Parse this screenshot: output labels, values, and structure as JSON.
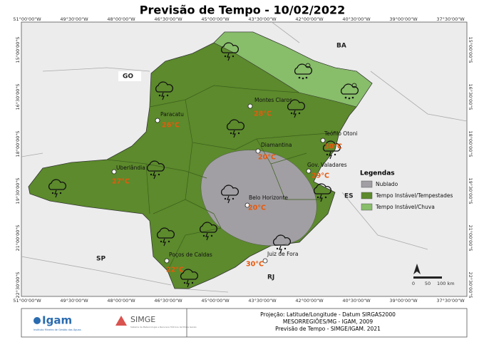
{
  "header": {
    "title": "Previsão de Tempo - 10/02/2022"
  },
  "map": {
    "lon_labels": [
      "51°00'00\"W",
      "49°30'00\"W",
      "48°00'00\"W",
      "46°30'00\"W",
      "45°00'00\"W",
      "43°30'00\"W",
      "42°00'00\"W",
      "40°30'00\"W",
      "39°00'00\"W",
      "37°30'00\"W"
    ],
    "lat_labels": [
      "15°00'00\"S",
      "16°30'00\"S",
      "18°00'00\"S",
      "19°30'00\"S",
      "21°00'00\"S",
      "22°30'00\"S"
    ],
    "states": [
      "BA",
      "GO",
      "ES",
      "SP",
      "RJ"
    ],
    "cities": [
      {
        "name": "Montes Claros",
        "temp": "28°C"
      },
      {
        "name": "Paracatu",
        "temp": "26°C"
      },
      {
        "name": "Teófilo Otoni",
        "temp": "30°C"
      },
      {
        "name": "Diamantina",
        "temp": "20°C"
      },
      {
        "name": "Uberlândia",
        "temp": "27°C"
      },
      {
        "name": "Gov. Valadares",
        "temp": "29°C"
      },
      {
        "name": "Belo Horizonte",
        "temp": "20°C"
      },
      {
        "name": "Juiz de Fora",
        "temp": "30°C"
      },
      {
        "name": "Poços de Caldas",
        "temp": "22°C"
      }
    ],
    "legend": {
      "title": "Legendas",
      "items": [
        "Nublado",
        "Tempo Instável/Tempestades",
        "Tempo Instável/Chuva"
      ]
    },
    "scale": [
      "0",
      "50",
      "100 km"
    ]
  },
  "footer": {
    "igam": "Igam",
    "igam_sub": "Instituto Mineiro de Gestão das Águas",
    "simge": "SIMGE",
    "simge_sub": "Sistema de Meteorologia e Recursos Hídricos de Minas Gerais",
    "notes": [
      "Projeção: Latitude/Longitude - Datum SIRGAS2000",
      "MESORREGIÕES/MG - IGAM, 2009",
      "Previsão de Tempo - SIMGE/IGAM. 2021"
    ]
  }
}
